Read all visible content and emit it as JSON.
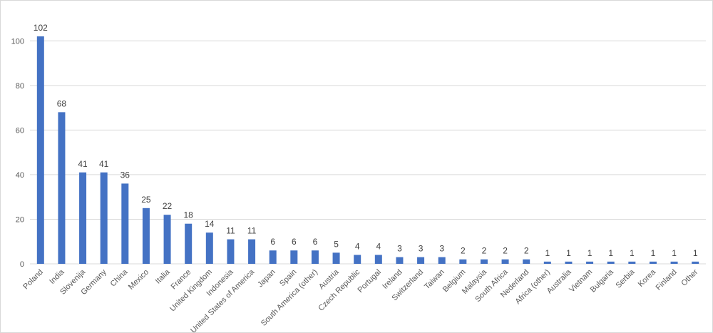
{
  "chart_data": {
    "type": "bar",
    "categories": [
      "Poland",
      "India",
      "Slovenija",
      "Germany",
      "China",
      "Mexico",
      "Italia",
      "France",
      "United Kingdom",
      "Indonesia",
      "United States of America",
      "Japan",
      "Spain",
      "South America (other)",
      "Austria",
      "Czech Republic",
      "Portugal",
      "Ireland",
      "Switzerland",
      "Taiwan",
      "Belgium",
      "Malaysia",
      "South Africa",
      "Nederland",
      "Africa (other)",
      "Australia",
      "Vietnam",
      "Bulgaria",
      "Serbia",
      "Korea",
      "Finland",
      "Other"
    ],
    "values": [
      102,
      68,
      41,
      41,
      36,
      25,
      22,
      18,
      14,
      11,
      11,
      6,
      6,
      6,
      5,
      4,
      4,
      3,
      3,
      3,
      2,
      2,
      2,
      2,
      1,
      1,
      1,
      1,
      1,
      1,
      1,
      1
    ],
    "color": "#4472c4",
    "ylim": [
      0,
      110
    ],
    "yticks": [
      0,
      20,
      40,
      60,
      80,
      100
    ],
    "grid": true
  }
}
